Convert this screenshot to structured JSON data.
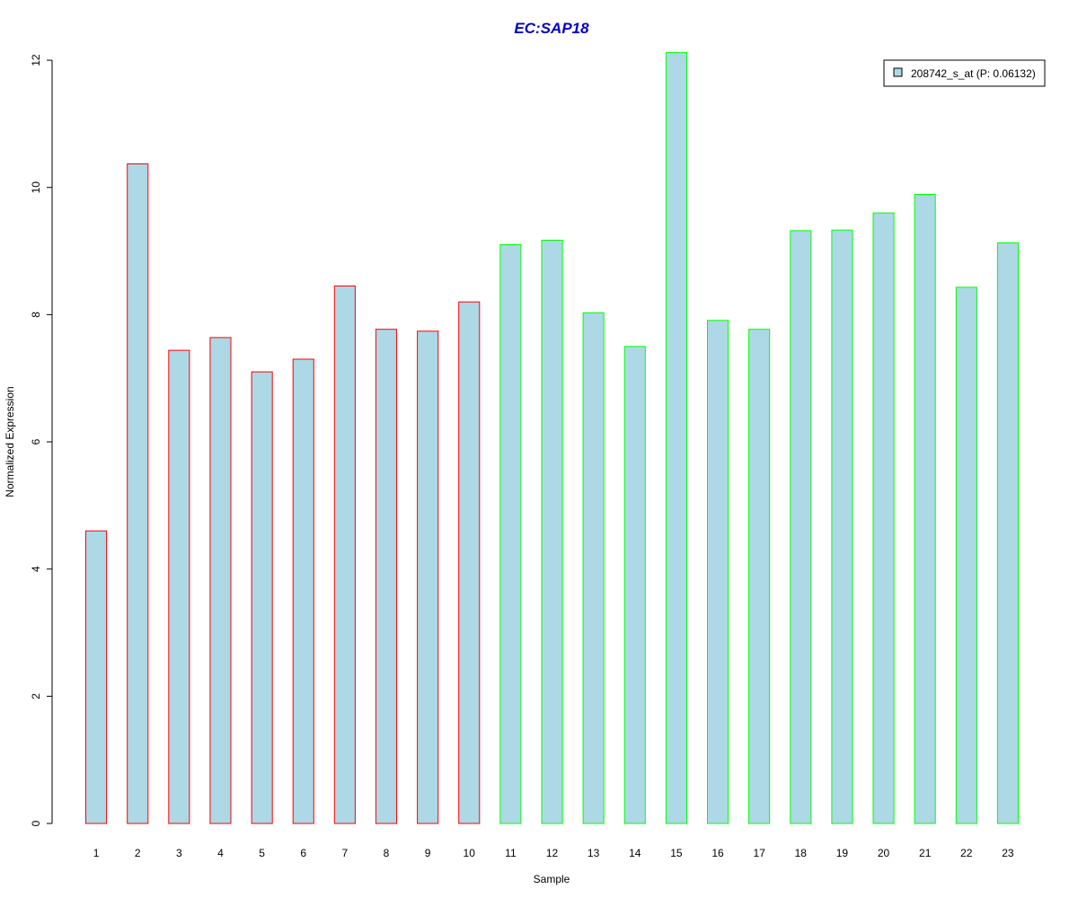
{
  "chart_data": {
    "type": "bar",
    "title": "EC:SAP18",
    "xlabel": "Sample",
    "ylabel": "Normalized Expression",
    "categories": [
      "1",
      "2",
      "3",
      "4",
      "5",
      "6",
      "7",
      "8",
      "9",
      "10",
      "11",
      "12",
      "13",
      "14",
      "15",
      "16",
      "17",
      "18",
      "19",
      "20",
      "21",
      "22",
      "23"
    ],
    "series": [
      {
        "name": "208742_s_at (P: 0.06132)",
        "values": [
          4.6,
          10.37,
          7.44,
          7.64,
          7.1,
          7.3,
          8.45,
          7.77,
          7.74,
          8.2,
          9.1,
          9.17,
          8.03,
          7.5,
          12.12,
          7.91,
          7.77,
          9.32,
          9.33,
          9.6,
          9.89,
          8.43,
          9.13
        ]
      }
    ],
    "group_border_colors": [
      "#ff0000",
      "#ff0000",
      "#ff0000",
      "#ff0000",
      "#ff0000",
      "#ff0000",
      "#ff0000",
      "#ff0000",
      "#ff0000",
      "#ff0000",
      "#00ff00",
      "#00ff00",
      "#00ff00",
      "#00ff00",
      "#00ff00",
      "#00ff00",
      "#00ff00",
      "#00ff00",
      "#00ff00",
      "#00ff00",
      "#00ff00",
      "#00ff00",
      "#00ff00"
    ],
    "bar_fill": "#add8e6",
    "title_color": "#0000cc",
    "ylim": [
      0,
      12
    ],
    "yticks": [
      0,
      2,
      4,
      6,
      8,
      10,
      12
    ],
    "grid": false,
    "legend_position": "top-right"
  }
}
